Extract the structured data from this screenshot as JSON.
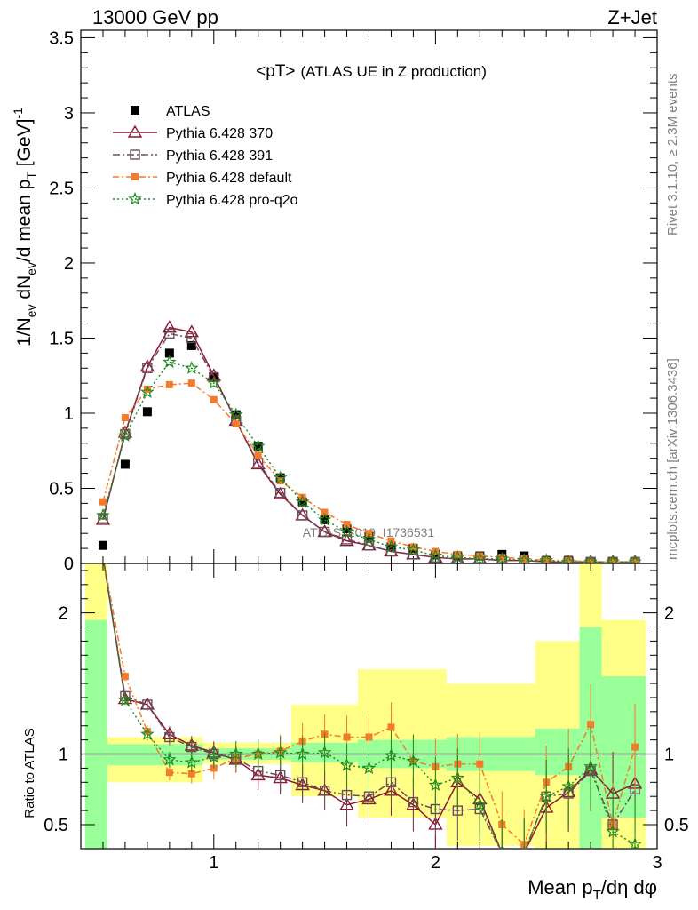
{
  "header": {
    "left": "13000 GeV pp",
    "right": "Z+Jet"
  },
  "plot_title": {
    "main": "<pT>",
    "sub": "(ATLAS UE in Z production)"
  },
  "watermark": "ATLAS_2019_I1736531",
  "side_text": {
    "rivet": "Rivet 3.1.10, ≥ 2.3M events",
    "mcplots": "mcplots.cern.ch [arXiv:1306.3436]"
  },
  "upper_ylabel": "1/N_ev dN_ev/d mean p_T [GeV]^-1",
  "lower_ylabel": "Ratio to ATLAS",
  "xlabel": "Mean p_T/dη dφ",
  "x_ticks": [
    "1",
    "2",
    "3"
  ],
  "upper_y_ticks": [
    "0",
    "0.5",
    "1",
    "1.5",
    "2",
    "2.5",
    "3",
    "3.5"
  ],
  "lower_y_ticks": [
    "0.5",
    "1",
    "2"
  ],
  "colors": {
    "atlas": "#000000",
    "p370": "#8b1a2e",
    "p391": "#6b4a5e",
    "pdefault": "#f47b2a",
    "pq2o": "#1f8c1f",
    "band_inner": "#99ff99",
    "band_outer": "#ffff88"
  },
  "chart_data": {
    "type": "line",
    "x": [
      0.5,
      0.6,
      0.7,
      0.8,
      0.9,
      1.0,
      1.1,
      1.2,
      1.3,
      1.4,
      1.5,
      1.6,
      1.7,
      1.8,
      1.9,
      2.0,
      2.1,
      2.2,
      2.3,
      2.4,
      2.5,
      2.6,
      2.7,
      2.8,
      2.9
    ],
    "xlim": [
      0.4,
      3.0
    ],
    "ylim": [
      0,
      3.55
    ],
    "series": [
      {
        "name": "ATLAS",
        "values": [
          0.12,
          0.66,
          1.01,
          1.4,
          1.45,
          1.24,
          0.99,
          0.78,
          0.57,
          0.41,
          0.29,
          0.23,
          0.18,
          0.11,
          0.1,
          0.06,
          0.05,
          0.05,
          0.06,
          0.05,
          0.02,
          0.02,
          0.01,
          0.01,
          0.01
        ]
      },
      {
        "name": "Pythia 6.428 370",
        "values": [
          0.29,
          0.87,
          1.31,
          1.57,
          1.54,
          1.25,
          0.95,
          0.66,
          0.46,
          0.32,
          0.21,
          0.15,
          0.12,
          0.08,
          0.06,
          0.04,
          0.03,
          0.03,
          0.02,
          0.02,
          0.01,
          0.01,
          0.01,
          0.01,
          0.01
        ]
      },
      {
        "name": "Pythia 6.428 391",
        "values": [
          0.3,
          0.86,
          1.3,
          1.53,
          1.5,
          1.24,
          0.95,
          0.67,
          0.47,
          0.32,
          0.21,
          0.16,
          0.12,
          0.08,
          0.06,
          0.04,
          0.03,
          0.03,
          0.02,
          0.02,
          0.01,
          0.01,
          0.01,
          0.01,
          0.01
        ]
      },
      {
        "name": "Pythia 6.428 default",
        "values": [
          0.41,
          0.97,
          1.16,
          1.19,
          1.2,
          1.09,
          0.93,
          0.72,
          0.55,
          0.44,
          0.34,
          0.26,
          0.2,
          0.15,
          0.11,
          0.08,
          0.06,
          0.05,
          0.04,
          0.03,
          0.02,
          0.02,
          0.01,
          0.01,
          0.01
        ]
      },
      {
        "name": "Pythia 6.428 pro-q2o",
        "values": [
          0.32,
          0.85,
          1.14,
          1.34,
          1.3,
          1.2,
          0.99,
          0.78,
          0.57,
          0.41,
          0.29,
          0.21,
          0.16,
          0.11,
          0.09,
          0.05,
          0.04,
          0.03,
          0.03,
          0.02,
          0.02,
          0.01,
          0.01,
          0.01,
          0.01
        ]
      }
    ],
    "ratio": {
      "ylim": [
        0.33,
        2.35
      ],
      "bands_inner": [
        [
          0.42,
          0.52,
          0.3,
          1.95
        ],
        [
          0.52,
          0.95,
          0.92,
          1.07
        ],
        [
          0.95,
          1.35,
          0.96,
          1.04
        ],
        [
          1.35,
          1.65,
          0.94,
          1.08
        ],
        [
          1.65,
          2.05,
          0.9,
          1.1
        ],
        [
          2.05,
          2.45,
          0.88,
          1.12
        ],
        [
          2.45,
          2.65,
          0.85,
          1.18
        ],
        [
          2.65,
          2.75,
          0.3,
          1.9
        ],
        [
          2.75,
          2.95,
          0.55,
          1.55
        ]
      ],
      "bands_outer": [
        [
          0.42,
          0.52,
          0.3,
          2.35
        ],
        [
          0.52,
          0.95,
          0.8,
          1.12
        ],
        [
          0.95,
          1.35,
          0.93,
          1.08
        ],
        [
          1.35,
          1.65,
          0.7,
          1.35
        ],
        [
          1.65,
          2.05,
          0.55,
          1.6
        ],
        [
          2.05,
          2.45,
          0.35,
          1.5
        ],
        [
          2.45,
          2.65,
          0.3,
          1.8
        ],
        [
          2.65,
          2.75,
          0.3,
          2.35
        ],
        [
          2.75,
          2.95,
          0.3,
          1.95
        ]
      ],
      "series": [
        {
          "name": "Pythia 6.428 370",
          "values": [
            2.4,
            1.39,
            1.35,
            1.14,
            1.06,
            1.01,
            0.96,
            0.85,
            0.83,
            0.78,
            0.74,
            0.64,
            0.68,
            0.74,
            0.64,
            0.5,
            0.8,
            0.68,
            0.3,
            0.3,
            0.62,
            0.73,
            0.89,
            0.72,
            0.79
          ]
        },
        {
          "name": "Pythia 6.428 391",
          "values": [
            2.4,
            1.41,
            1.35,
            1.12,
            1.05,
            1.0,
            0.97,
            0.88,
            0.85,
            0.8,
            0.74,
            0.71,
            0.7,
            0.8,
            0.66,
            0.61,
            0.6,
            0.61,
            0.3,
            0.3,
            0.7,
            0.72,
            0.88,
            0.5,
            0.75
          ]
        },
        {
          "name": "Pythia 6.428 default",
          "values": [
            2.4,
            1.55,
            1.16,
            0.87,
            0.86,
            0.9,
            0.97,
            1.0,
            1.02,
            1.09,
            1.14,
            1.12,
            1.12,
            1.19,
            0.95,
            0.91,
            0.93,
            0.93,
            0.5,
            0.36,
            0.8,
            0.91,
            1.21,
            0.5,
            1.05
          ]
        },
        {
          "name": "Pythia 6.428 pro-q2o",
          "values": [
            2.4,
            1.38,
            1.14,
            0.96,
            0.94,
            0.98,
            1.0,
            1.0,
            1.01,
            1.0,
            1.01,
            0.92,
            0.9,
            0.99,
            0.95,
            0.78,
            0.83,
            0.64,
            0.3,
            0.3,
            0.7,
            0.77,
            0.91,
            0.45,
            0.36
          ]
        }
      ]
    }
  }
}
